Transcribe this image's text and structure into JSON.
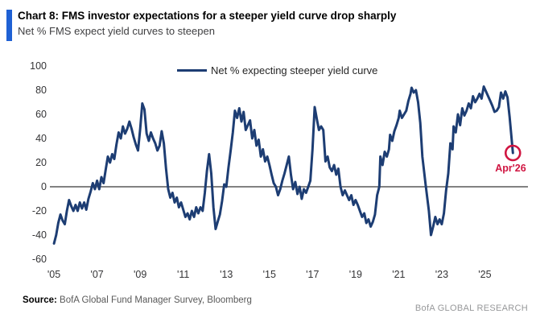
{
  "header": {
    "title": "Chart 8: FMS investor expectations for a steeper yield curve drop sharply",
    "subtitle": "Net % FMS expect yield curves to steepen"
  },
  "footer": {
    "source_label": "Source:",
    "source_text": " BofA Global Fund Manager Survey, Bloomberg",
    "brand": "BofA GLOBAL RESEARCH"
  },
  "colors": {
    "accent_bar": "#1f61d4",
    "line": "#1d3d73",
    "zero_line": "#595959",
    "annotation": "#d01541"
  },
  "chart_data": {
    "type": "line",
    "title": "Chart 8: FMS investor expectations for a steeper yield curve drop sharply",
    "subtitle": "Net % FMS expect yield curves to steepen",
    "legend": "Net % expecting steeper yield curve",
    "legend_position": "top-center",
    "grid": false,
    "xlabel": "",
    "ylabel": "",
    "ylim": [
      -60,
      100
    ],
    "xlim": [
      2004.81,
      2027.0
    ],
    "y_ticks": [
      100,
      80,
      60,
      40,
      20,
      0,
      -20,
      -40,
      -60
    ],
    "x_ticks": [
      {
        "year": 2005,
        "label": "'05"
      },
      {
        "year": 2007,
        "label": "'07"
      },
      {
        "year": 2009,
        "label": "'09"
      },
      {
        "year": 2011,
        "label": "'11"
      },
      {
        "year": 2013,
        "label": "'13"
      },
      {
        "year": 2015,
        "label": "'15"
      },
      {
        "year": 2017,
        "label": "'17"
      },
      {
        "year": 2019,
        "label": "'19"
      },
      {
        "year": 2021,
        "label": "'21"
      },
      {
        "year": 2023,
        "label": "'23"
      },
      {
        "year": 2025,
        "label": "'25"
      }
    ],
    "annotation": {
      "label": "Apr'26",
      "year": 2026.3,
      "value": 28
    },
    "series": [
      {
        "name": "Net % expecting steeper yield curve",
        "points": [
          [
            2005.0,
            -47
          ],
          [
            2005.1,
            -40
          ],
          [
            2005.2,
            -30
          ],
          [
            2005.3,
            -23
          ],
          [
            2005.4,
            -28
          ],
          [
            2005.5,
            -31
          ],
          [
            2005.6,
            -20
          ],
          [
            2005.7,
            -11
          ],
          [
            2005.8,
            -16
          ],
          [
            2005.9,
            -20
          ],
          [
            2006.0,
            -15
          ],
          [
            2006.1,
            -20
          ],
          [
            2006.2,
            -13
          ],
          [
            2006.3,
            -18
          ],
          [
            2006.4,
            -13
          ],
          [
            2006.5,
            -19
          ],
          [
            2006.6,
            -10
          ],
          [
            2006.7,
            -4
          ],
          [
            2006.8,
            3
          ],
          [
            2006.9,
            -2
          ],
          [
            2007.0,
            5
          ],
          [
            2007.1,
            -2
          ],
          [
            2007.2,
            8
          ],
          [
            2007.3,
            3
          ],
          [
            2007.4,
            14
          ],
          [
            2007.5,
            25
          ],
          [
            2007.6,
            20
          ],
          [
            2007.7,
            27
          ],
          [
            2007.8,
            23
          ],
          [
            2007.9,
            35
          ],
          [
            2008.0,
            45
          ],
          [
            2008.1,
            40
          ],
          [
            2008.2,
            50
          ],
          [
            2008.3,
            44
          ],
          [
            2008.4,
            48
          ],
          [
            2008.5,
            54
          ],
          [
            2008.6,
            48
          ],
          [
            2008.7,
            41
          ],
          [
            2008.8,
            35
          ],
          [
            2008.9,
            30
          ],
          [
            2009.0,
            48
          ],
          [
            2009.1,
            69
          ],
          [
            2009.2,
            64
          ],
          [
            2009.3,
            44
          ],
          [
            2009.4,
            38
          ],
          [
            2009.5,
            45
          ],
          [
            2009.6,
            40
          ],
          [
            2009.7,
            36
          ],
          [
            2009.8,
            30
          ],
          [
            2009.9,
            34
          ],
          [
            2010.0,
            46
          ],
          [
            2010.1,
            36
          ],
          [
            2010.2,
            15
          ],
          [
            2010.3,
            -2
          ],
          [
            2010.4,
            -9
          ],
          [
            2010.5,
            -5
          ],
          [
            2010.6,
            -13
          ],
          [
            2010.7,
            -9
          ],
          [
            2010.8,
            -17
          ],
          [
            2010.9,
            -13
          ],
          [
            2011.0,
            -19
          ],
          [
            2011.1,
            -25
          ],
          [
            2011.2,
            -22
          ],
          [
            2011.3,
            -27
          ],
          [
            2011.4,
            -20
          ],
          [
            2011.5,
            -25
          ],
          [
            2011.6,
            -17
          ],
          [
            2011.7,
            -22
          ],
          [
            2011.8,
            -17
          ],
          [
            2011.9,
            -20
          ],
          [
            2012.0,
            -5
          ],
          [
            2012.1,
            13
          ],
          [
            2012.2,
            27
          ],
          [
            2012.3,
            11
          ],
          [
            2012.4,
            -17
          ],
          [
            2012.5,
            -35
          ],
          [
            2012.6,
            -29
          ],
          [
            2012.7,
            -23
          ],
          [
            2012.8,
            -12
          ],
          [
            2012.9,
            2
          ],
          [
            2013.0,
            0
          ],
          [
            2013.1,
            16
          ],
          [
            2013.2,
            30
          ],
          [
            2013.3,
            45
          ],
          [
            2013.4,
            63
          ],
          [
            2013.5,
            57
          ],
          [
            2013.6,
            65
          ],
          [
            2013.7,
            54
          ],
          [
            2013.8,
            62
          ],
          [
            2013.9,
            47
          ],
          [
            2014.0,
            51
          ],
          [
            2014.1,
            55
          ],
          [
            2014.2,
            40
          ],
          [
            2014.3,
            47
          ],
          [
            2014.4,
            34
          ],
          [
            2014.5,
            39
          ],
          [
            2014.6,
            25
          ],
          [
            2014.7,
            31
          ],
          [
            2014.8,
            21
          ],
          [
            2014.9,
            25
          ],
          [
            2015.0,
            18
          ],
          [
            2015.1,
            10
          ],
          [
            2015.2,
            3
          ],
          [
            2015.3,
            0
          ],
          [
            2015.4,
            -7
          ],
          [
            2015.5,
            -2
          ],
          [
            2015.6,
            5
          ],
          [
            2015.7,
            11
          ],
          [
            2015.8,
            18
          ],
          [
            2015.9,
            25
          ],
          [
            2016.0,
            10
          ],
          [
            2016.1,
            -2
          ],
          [
            2016.2,
            4
          ],
          [
            2016.3,
            -6
          ],
          [
            2016.4,
            0
          ],
          [
            2016.5,
            -10
          ],
          [
            2016.6,
            -2
          ],
          [
            2016.7,
            -5
          ],
          [
            2016.8,
            0
          ],
          [
            2016.9,
            5
          ],
          [
            2017.0,
            31
          ],
          [
            2017.1,
            66
          ],
          [
            2017.2,
            56
          ],
          [
            2017.3,
            47
          ],
          [
            2017.4,
            50
          ],
          [
            2017.5,
            47
          ],
          [
            2017.6,
            21
          ],
          [
            2017.7,
            25
          ],
          [
            2017.8,
            16
          ],
          [
            2017.9,
            13
          ],
          [
            2018.0,
            18
          ],
          [
            2018.1,
            10
          ],
          [
            2018.2,
            15
          ],
          [
            2018.3,
            0
          ],
          [
            2018.4,
            -7
          ],
          [
            2018.5,
            -3
          ],
          [
            2018.6,
            -7
          ],
          [
            2018.7,
            -11
          ],
          [
            2018.8,
            -7
          ],
          [
            2018.9,
            -15
          ],
          [
            2019.0,
            -11
          ],
          [
            2019.1,
            -15
          ],
          [
            2019.2,
            -20
          ],
          [
            2019.3,
            -25
          ],
          [
            2019.4,
            -22
          ],
          [
            2019.5,
            -30
          ],
          [
            2019.6,
            -27
          ],
          [
            2019.7,
            -33
          ],
          [
            2019.8,
            -29
          ],
          [
            2019.9,
            -23
          ],
          [
            2020.0,
            -7
          ],
          [
            2020.1,
            0
          ],
          [
            2020.15,
            25
          ],
          [
            2020.25,
            18
          ],
          [
            2020.35,
            29
          ],
          [
            2020.45,
            25
          ],
          [
            2020.55,
            31
          ],
          [
            2020.6,
            43
          ],
          [
            2020.7,
            38
          ],
          [
            2020.8,
            46
          ],
          [
            2020.9,
            51
          ],
          [
            2021.0,
            57
          ],
          [
            2021.05,
            63
          ],
          [
            2021.15,
            57
          ],
          [
            2021.25,
            60
          ],
          [
            2021.35,
            63
          ],
          [
            2021.45,
            71
          ],
          [
            2021.55,
            77
          ],
          [
            2021.6,
            82
          ],
          [
            2021.7,
            78
          ],
          [
            2021.8,
            80
          ],
          [
            2021.9,
            70
          ],
          [
            2022.0,
            53
          ],
          [
            2022.1,
            25
          ],
          [
            2022.25,
            2
          ],
          [
            2022.4,
            -20
          ],
          [
            2022.5,
            -40
          ],
          [
            2022.6,
            -33
          ],
          [
            2022.7,
            -25
          ],
          [
            2022.8,
            -31
          ],
          [
            2022.9,
            -27
          ],
          [
            2023.0,
            -31
          ],
          [
            2023.1,
            -22
          ],
          [
            2023.2,
            -3
          ],
          [
            2023.3,
            11
          ],
          [
            2023.4,
            36
          ],
          [
            2023.5,
            31
          ],
          [
            2023.55,
            50
          ],
          [
            2023.65,
            45
          ],
          [
            2023.75,
            60
          ],
          [
            2023.85,
            51
          ],
          [
            2023.95,
            65
          ],
          [
            2024.05,
            59
          ],
          [
            2024.15,
            63
          ],
          [
            2024.25,
            69
          ],
          [
            2024.35,
            65
          ],
          [
            2024.45,
            75
          ],
          [
            2024.55,
            70
          ],
          [
            2024.65,
            73
          ],
          [
            2024.75,
            77
          ],
          [
            2024.85,
            73
          ],
          [
            2024.95,
            83
          ],
          [
            2025.05,
            79
          ],
          [
            2025.15,
            75
          ],
          [
            2025.25,
            71
          ],
          [
            2025.35,
            67
          ],
          [
            2025.45,
            62
          ],
          [
            2025.55,
            63
          ],
          [
            2025.65,
            66
          ],
          [
            2025.75,
            78
          ],
          [
            2025.85,
            73
          ],
          [
            2025.95,
            79
          ],
          [
            2026.05,
            74
          ],
          [
            2026.15,
            58
          ],
          [
            2026.3,
            28
          ]
        ]
      }
    ]
  }
}
